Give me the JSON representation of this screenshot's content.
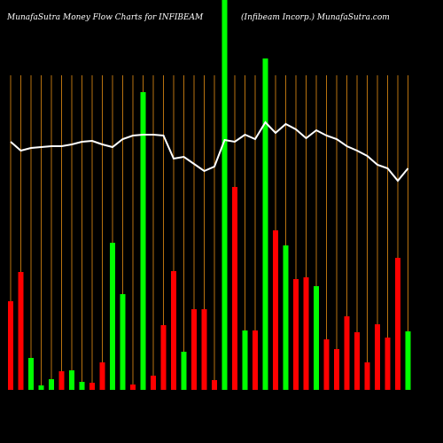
{
  "chart_data": {
    "type": "bar",
    "title": "MunafaSutra  Money Flow  Charts for INFIBEAM",
    "subtitle": "(Infibeam Incorp.) MunafaSutra.com",
    "ylim": [
      0,
      440
    ],
    "grid_color": "#b8720f",
    "series": [
      {
        "type": "bar",
        "values": [
          100,
          133,
          36,
          5,
          12,
          21,
          22,
          9,
          8,
          31,
          166,
          108,
          6,
          336,
          16,
          73,
          134,
          43,
          91,
          91,
          11,
          440,
          229,
          67,
          67,
          374,
          180,
          163,
          125,
          127,
          117,
          57,
          46,
          83,
          65,
          31,
          74,
          59,
          149,
          66
        ],
        "colors": [
          "#ff0000",
          "#ff0000",
          "#00ff00",
          "#00ff00",
          "#00ff00",
          "#ff0000",
          "#00ff00",
          "#00ff00",
          "#ff0000",
          "#ff0000",
          "#00ff00",
          "#00ff00",
          "#ff0000",
          "#00ff00",
          "#ff0000",
          "#ff0000",
          "#ff0000",
          "#00ff00",
          "#ff0000",
          "#ff0000",
          "#ff0000",
          "#00ff00",
          "#ff0000",
          "#00ff00",
          "#ff0000",
          "#00ff00",
          "#ff0000",
          "#00ff00",
          "#ff0000",
          "#ff0000",
          "#00ff00",
          "#ff0000",
          "#ff0000",
          "#ff0000",
          "#ff0000",
          "#ff0000",
          "#ff0000",
          "#ff0000",
          "#ff0000",
          "#00ff00"
        ]
      },
      {
        "type": "line",
        "color": "#ffffff",
        "values": [
          280,
          270,
          273,
          274,
          275,
          275,
          277,
          280,
          281,
          277,
          274,
          283,
          287,
          288,
          288,
          287,
          261,
          263,
          255,
          247,
          252,
          282,
          280,
          288,
          283,
          302,
          290,
          300,
          294,
          284,
          293,
          287,
          283,
          275,
          270,
          264,
          254,
          250,
          236,
          250
        ]
      }
    ]
  }
}
